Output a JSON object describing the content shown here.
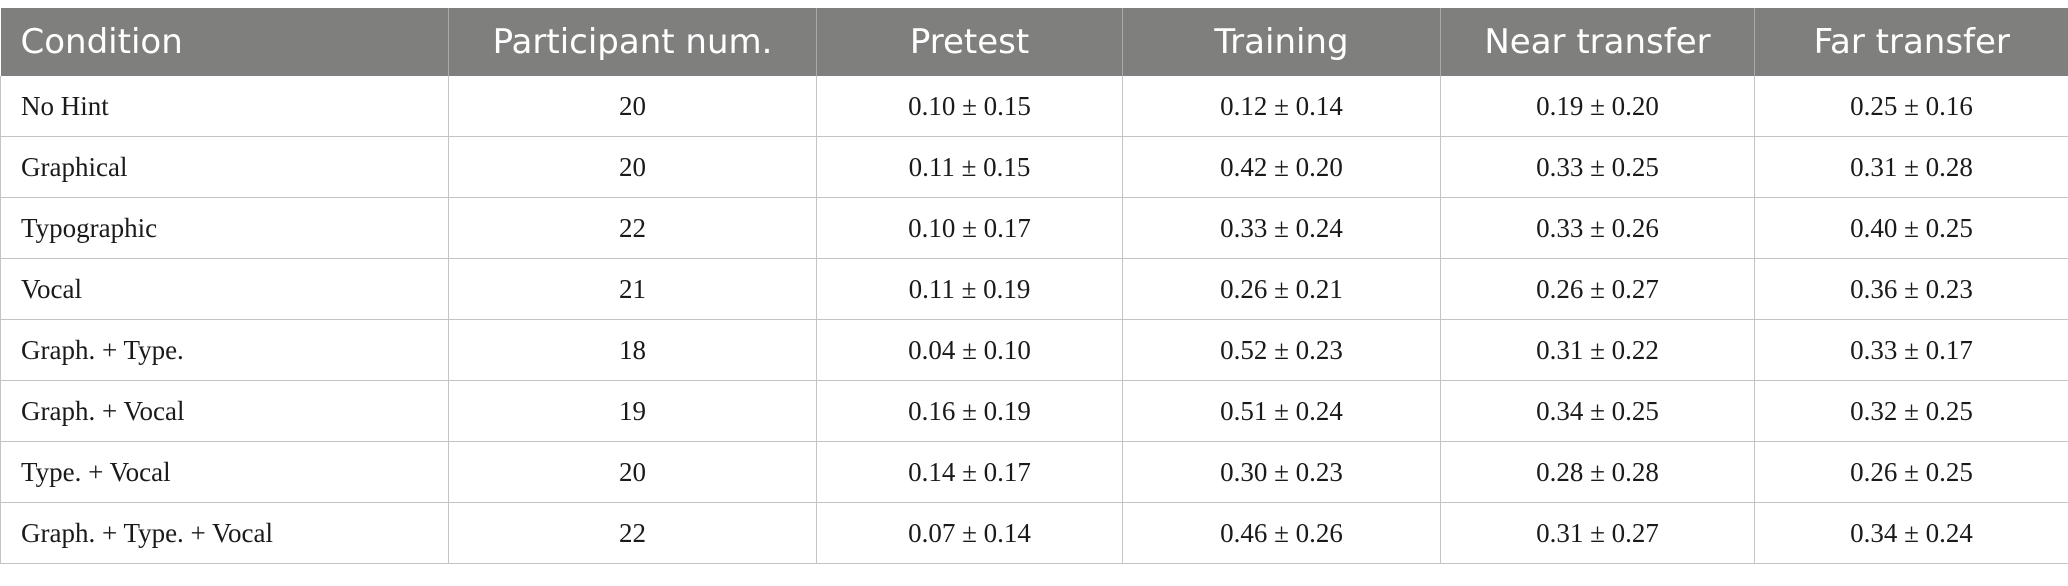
{
  "table": {
    "headers": [
      "Condition",
      "Participant num.",
      "Pretest",
      "Training",
      "Near transfer",
      "Far transfer"
    ],
    "rows": [
      [
        "No Hint",
        "20",
        "0.10 ± 0.15",
        "0.12 ± 0.14",
        "0.19 ± 0.20",
        "0.25 ± 0.16"
      ],
      [
        "Graphical",
        "20",
        "0.11 ± 0.15",
        "0.42 ± 0.20",
        "0.33 ± 0.25",
        "0.31 ± 0.28"
      ],
      [
        "Typographic",
        "22",
        "0.10 ± 0.17",
        "0.33 ± 0.24",
        "0.33 ± 0.26",
        "0.40 ± 0.25"
      ],
      [
        "Vocal",
        "21",
        "0.11 ± 0.19",
        "0.26 ± 0.21",
        "0.26 ± 0.27",
        "0.36 ± 0.23"
      ],
      [
        "Graph. + Type.",
        "18",
        "0.04 ± 0.10",
        "0.52 ± 0.23",
        "0.31 ± 0.22",
        "0.33 ± 0.17"
      ],
      [
        "Graph. + Vocal",
        "19",
        "0.16 ± 0.19",
        "0.51 ± 0.24",
        "0.34 ± 0.25",
        "0.32 ± 0.25"
      ],
      [
        "Type. + Vocal",
        "20",
        "0.14 ± 0.17",
        "0.30 ± 0.23",
        "0.28 ± 0.28",
        "0.26 ± 0.25"
      ],
      [
        "Graph. + Type. + Vocal",
        "22",
        "0.07 ± 0.14",
        "0.46 ± 0.26",
        "0.31 ± 0.27",
        "0.34 ± 0.24"
      ]
    ]
  },
  "colors": {
    "header_background": "#7f7f7e",
    "header_text": "#ffffff",
    "grid_line": "#c4c4c4"
  }
}
